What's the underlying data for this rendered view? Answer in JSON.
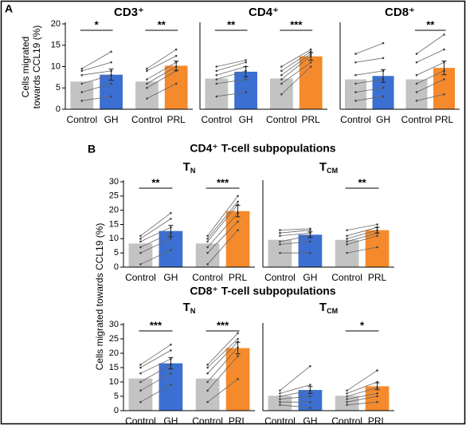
{
  "panels": [
    {
      "label": "A"
    },
    {
      "label": "B"
    }
  ],
  "headings": [
    "CD4⁺ T-cell subpopulations",
    "CD8⁺ T-cell subpopulations"
  ],
  "chart_data": [
    {
      "type": "bar",
      "title": "CD3⁺",
      "ylabel": [
        "Cells migrated",
        "towards CCL19 (%)"
      ],
      "categories": [
        "Control",
        "GH",
        "Control",
        "PRL"
      ],
      "colors": [
        "#c3c3c3",
        "#3b6fd1",
        "#c3c3c3",
        "#f58a2c"
      ],
      "values": [
        6.5,
        8.1,
        6.5,
        10.2
      ],
      "errors": [
        null,
        1.3,
        null,
        1.1
      ],
      "significance": [
        "*",
        "**"
      ],
      "pairs": [
        {
          "control": [
            2,
            4,
            6,
            8,
            9,
            9.5
          ],
          "treated": [
            3,
            6,
            8,
            9,
            11,
            13.5
          ]
        },
        {
          "control": [
            2.5,
            5,
            6,
            7,
            9,
            9.5
          ],
          "treated": [
            6,
            9,
            10,
            11,
            12.5,
            14
          ]
        }
      ],
      "ylim": [
        0,
        20
      ],
      "yticks": [
        0,
        5,
        10,
        15,
        20
      ]
    },
    {
      "type": "bar",
      "title": "CD4⁺",
      "categories": [
        "Control",
        "GH",
        "Control",
        "PRL"
      ],
      "colors": [
        "#c3c3c3",
        "#3b6fd1",
        "#c3c3c3",
        "#f58a2c"
      ],
      "values": [
        7.2,
        8.8,
        7.2,
        12.4
      ],
      "errors": [
        null,
        1.2,
        null,
        0.9
      ],
      "significance": [
        "**",
        "***"
      ],
      "pairs": [
        {
          "control": [
            3,
            6,
            7,
            8,
            9,
            10
          ],
          "treated": [
            4,
            7,
            9,
            10,
            11,
            11.5
          ]
        },
        {
          "control": [
            3.5,
            6,
            7,
            8,
            9,
            10
          ],
          "treated": [
            10,
            11,
            12.5,
            13,
            13.5,
            14
          ]
        }
      ],
      "ylim": [
        0,
        20
      ]
    },
    {
      "type": "bar",
      "title": "CD8⁺",
      "categories": [
        "Control",
        "GH",
        "Control",
        "PRL"
      ],
      "colors": [
        "#c3c3c3",
        "#3b6fd1",
        "#c3c3c3",
        "#f58a2c"
      ],
      "values": [
        7.0,
        7.8,
        7.0,
        9.7
      ],
      "errors": [
        null,
        1.5,
        null,
        1.6
      ],
      "significance": [
        null,
        "**"
      ],
      "pairs": [
        {
          "control": [
            2,
            4,
            6,
            8,
            11,
            13
          ],
          "treated": [
            3,
            5,
            7,
            9,
            12,
            15.5
          ]
        },
        {
          "control": [
            2,
            4,
            6,
            8,
            11,
            13
          ],
          "treated": [
            3.5,
            7,
            9,
            11,
            14,
            17.5
          ]
        }
      ],
      "ylim": [
        0,
        20
      ]
    },
    {
      "type": "bar",
      "title": "T",
      "title_subscript": "N",
      "ylabel": "Cells migrated towards CCL19 (%)",
      "categories": [
        "Control",
        "GH",
        "Control",
        "PRL"
      ],
      "colors": [
        "#c3c3c3",
        "#3b6fd1",
        "#c3c3c3",
        "#f58a2c"
      ],
      "values": [
        8.3,
        12.7,
        8.3,
        19.7
      ],
      "errors": [
        null,
        2,
        null,
        2
      ],
      "significance": [
        "**",
        "***"
      ],
      "pairs": [
        {
          "control": [
            1,
            5,
            7,
            9,
            10,
            11
          ],
          "treated": [
            6,
            10,
            12,
            14,
            17,
            19
          ]
        },
        {
          "control": [
            1,
            5,
            7,
            9,
            10,
            11
          ],
          "treated": [
            13,
            16,
            19,
            22,
            23,
            25
          ]
        }
      ],
      "ylim": [
        0,
        30
      ],
      "yticks": [
        0,
        5,
        10,
        15,
        20,
        25,
        30
      ]
    },
    {
      "type": "bar",
      "title": "T",
      "title_subscript": "CM",
      "categories": [
        "Control",
        "GH",
        "Control",
        "PRL"
      ],
      "colors": [
        "#c3c3c3",
        "#3b6fd1",
        "#c3c3c3",
        "#f58a2c"
      ],
      "values": [
        9.6,
        11.4,
        9.6,
        13.0
      ],
      "errors": [
        null,
        1,
        null,
        1
      ],
      "significance": [
        null,
        "**"
      ],
      "pairs": [
        {
          "control": [
            5,
            8,
            9,
            11,
            12,
            13
          ],
          "treated": [
            5,
            9,
            11,
            12,
            13,
            13.5
          ]
        },
        {
          "control": [
            5,
            8,
            9,
            10,
            11,
            13
          ],
          "treated": [
            7,
            11,
            12,
            13,
            14,
            15
          ]
        }
      ],
      "ylim": [
        0,
        30
      ]
    },
    {
      "type": "bar",
      "title": "T",
      "title_subscript": "N",
      "categories": [
        "Control",
        "GH",
        "Control",
        "PRL"
      ],
      "colors": [
        "#c3c3c3",
        "#3b6fd1",
        "#c3c3c3",
        "#f58a2c"
      ],
      "values": [
        11.2,
        16.5,
        11.2,
        21.8
      ],
      "errors": [
        null,
        2,
        null,
        2
      ],
      "significance": [
        "***",
        "***"
      ],
      "pairs": [
        {
          "control": [
            3,
            7,
            10,
            13,
            15,
            16
          ],
          "treated": [
            9,
            13,
            16,
            18,
            21,
            23
          ]
        },
        {
          "control": [
            3,
            7,
            10,
            13,
            15,
            16
          ],
          "treated": [
            11,
            19,
            22,
            24,
            25,
            27
          ]
        }
      ],
      "ylim": [
        0,
        30
      ],
      "yticks": [
        0,
        5,
        10,
        15,
        20,
        25,
        30
      ]
    },
    {
      "type": "bar",
      "title": "T",
      "title_subscript": "CM",
      "categories": [
        "Control",
        "GH",
        "Control",
        "PRL"
      ],
      "colors": [
        "#c3c3c3",
        "#3b6fd1",
        "#c3c3c3",
        "#f58a2c"
      ],
      "values": [
        5.2,
        7.2,
        5.2,
        8.5
      ],
      "errors": [
        null,
        1.2,
        null,
        1.2
      ],
      "significance": [
        null,
        "*"
      ],
      "pairs": [
        {
          "control": [
            2,
            3,
            4,
            5,
            6,
            7
          ],
          "treated": [
            1,
            3,
            5,
            7,
            9,
            15.5
          ]
        },
        {
          "control": [
            2,
            3,
            4,
            5,
            6,
            7
          ],
          "treated": [
            3,
            5,
            6,
            8,
            10,
            14
          ]
        }
      ],
      "ylim": [
        0,
        30
      ]
    }
  ]
}
